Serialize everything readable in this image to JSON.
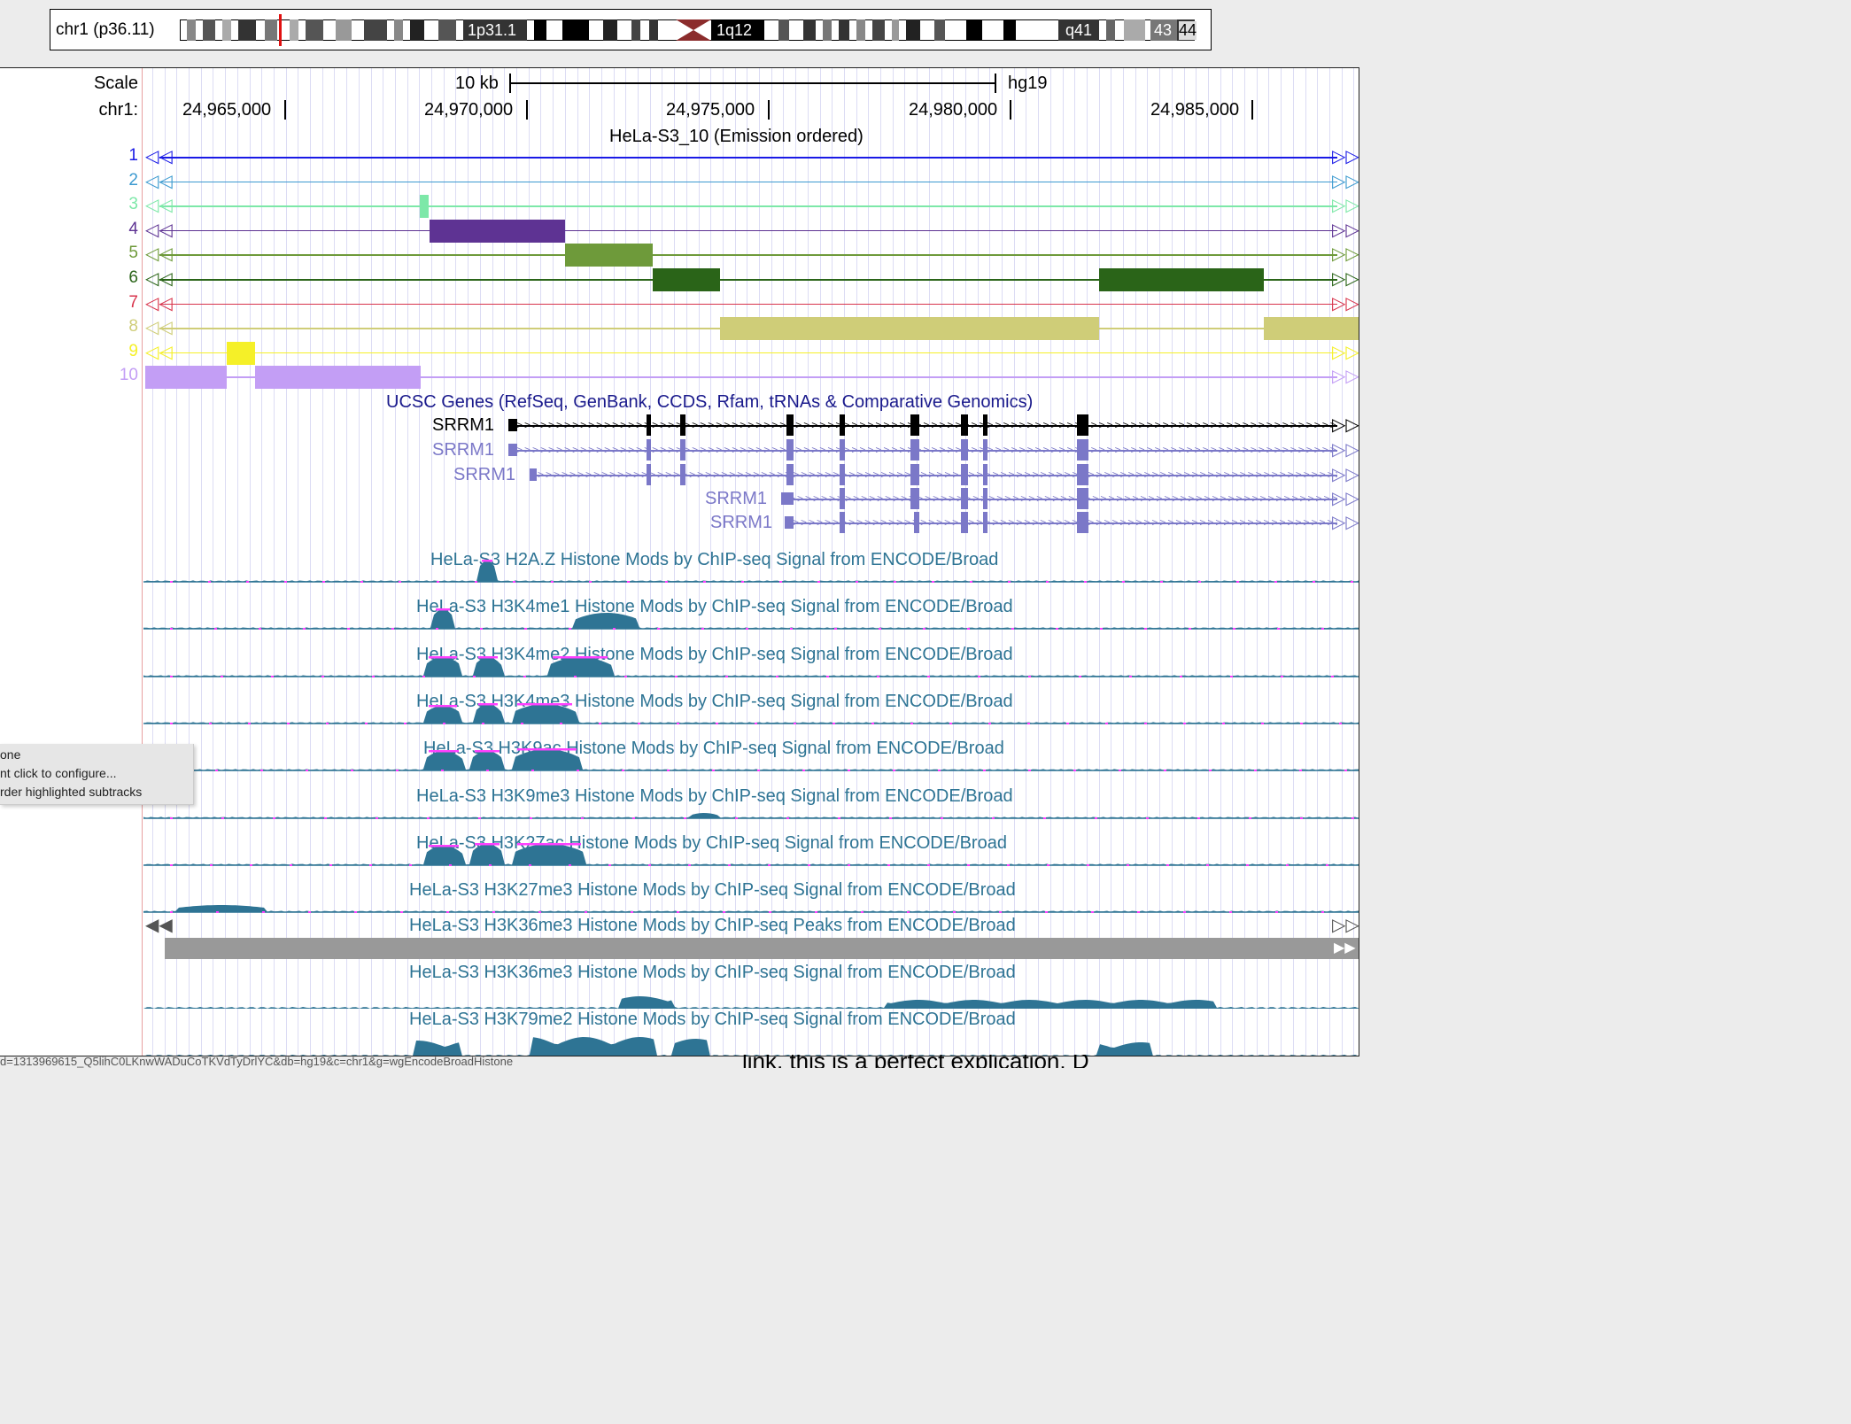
{
  "ideogram": {
    "label": "chr1 (p36.11)",
    "bands": [
      "1p31.1",
      "1q12",
      "q41",
      "43",
      "44"
    ]
  },
  "header": {
    "scale_label": "Scale",
    "chrom_label": "chr1:",
    "scale_value": "10 kb",
    "assembly": "hg19",
    "positions": [
      "24,965,000",
      "24,970,000",
      "24,975,000",
      "24,980,000",
      "24,985,000"
    ]
  },
  "segmentation": {
    "title": "HeLa-S3_10 (Emission ordered)",
    "rows": [
      {
        "num": "1",
        "color": "#1a1ae6"
      },
      {
        "num": "2",
        "color": "#3c9ad0"
      },
      {
        "num": "3",
        "color": "#7de8a8"
      },
      {
        "num": "4",
        "color": "#5e3393"
      },
      {
        "num": "5",
        "color": "#6e9a3a"
      },
      {
        "num": "6",
        "color": "#2a6418"
      },
      {
        "num": "7",
        "color": "#d8344c"
      },
      {
        "num": "8",
        "color": "#cfcd78"
      },
      {
        "num": "9",
        "color": "#f5f028"
      },
      {
        "num": "10",
        "color": "#c39ef5"
      }
    ]
  },
  "genes": {
    "title": "UCSC Genes (RefSeq, GenBank, CCDS, Rfam, tRNAs & Comparative Genomics)",
    "names": [
      "SRRM1",
      "SRRM1",
      "SRRM1",
      "SRRM1",
      "SRRM1"
    ]
  },
  "signal_tracks": [
    "HeLa-S3 H2A.Z Histone Mods by ChIP-seq Signal from ENCODE/Broad",
    "HeLa-S3 H3K4me1 Histone Mods by ChIP-seq Signal from ENCODE/Broad",
    "HeLa-S3 H3K4me2 Histone Mods by ChIP-seq Signal from ENCODE/Broad",
    "HeLa-S3 H3K4me3 Histone Mods by ChIP-seq Signal from ENCODE/Broad",
    "HeLa-S3 H3K9ac Histone Mods by ChIP-seq Signal from ENCODE/Broad",
    "HeLa-S3 H3K9me3 Histone Mods by ChIP-seq Signal from ENCODE/Broad",
    "HeLa-S3 H3K27ac Histone Mods by ChIP-seq Signal from ENCODE/Broad",
    "HeLa-S3 H3K27me3 Histone Mods by ChIP-seq Signal from ENCODE/Broad"
  ],
  "peaks_track": "HeLa-S3 H3K36me3 Histone Mods by ChIP-seq Peaks from ENCODE/Broad",
  "signal_tracks_bottom": [
    "HeLa-S3 H3K36me3 Histone Mods by ChIP-seq Signal from ENCODE/Broad",
    "HeLa-S3 H3K79me2 Histone Mods by ChIP-seq Signal from ENCODE/Broad"
  ],
  "context_menu": [
    "one",
    "nt click to configure...",
    "rder highlighted subtracks"
  ],
  "status": {
    "url": "d=1313969615_Q5lihC0LKnwWADuCoTKVdTyDrlYC&db=hg19&c=chr1&g=wgEncodeBroadHistone",
    "trailing": "link, this is a perfect explication. D"
  },
  "colors": {
    "signal": "#2e7494",
    "highlight": "#ff40ff"
  }
}
